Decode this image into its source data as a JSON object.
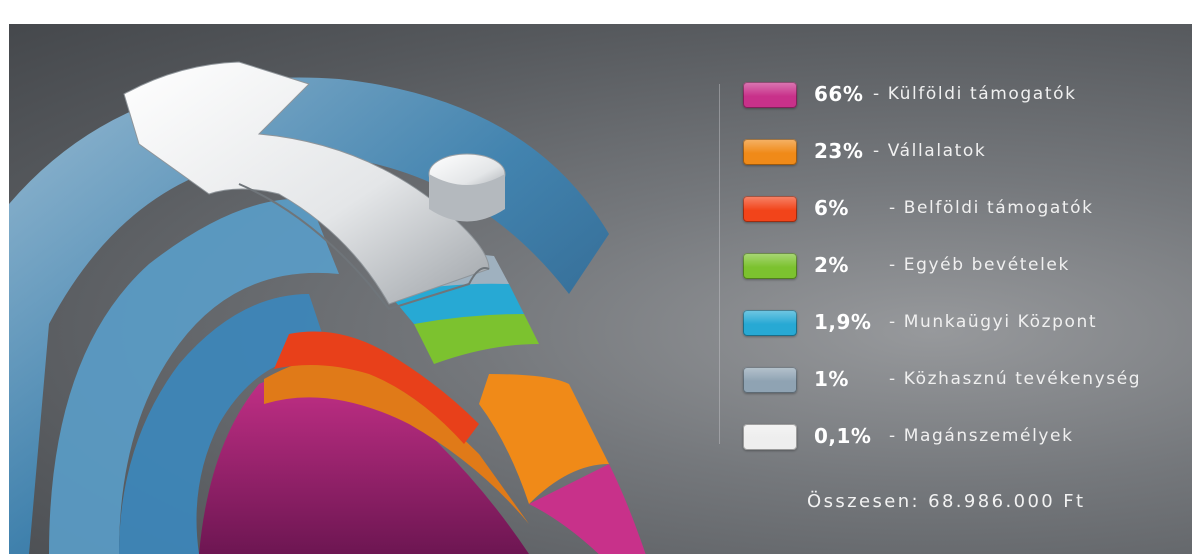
{
  "chart_data": {
    "type": "pie",
    "series": [
      {
        "pct_label": "66%",
        "label": "- Külföldi támogatók",
        "value": 66,
        "color": "#c8318a"
      },
      {
        "pct_label": "23%",
        "label": "- Vállalatok",
        "value": 23,
        "color": "#f08a18"
      },
      {
        "pct_label": "6%",
        "label": "- Belföldi támogatók",
        "value": 6,
        "color": "#f2441a"
      },
      {
        "pct_label": "2%",
        "label": "- Egyéb bevételek",
        "value": 2,
        "color": "#7cc22f"
      },
      {
        "pct_label": "1,9%",
        "label": "- Munkaügyi Központ",
        "value": 1.9,
        "color": "#27a9d4"
      },
      {
        "pct_label": "1%",
        "label": "- Közhasznú tevékenység",
        "value": 1,
        "color": "#8fa3b3"
      },
      {
        "pct_label": "0,1%",
        "label": "- Magánszemélyek",
        "value": 0.1,
        "color": "#eeeeee"
      }
    ],
    "legend_position": "right",
    "total": "Összesen: 68.986.000 Ft"
  }
}
